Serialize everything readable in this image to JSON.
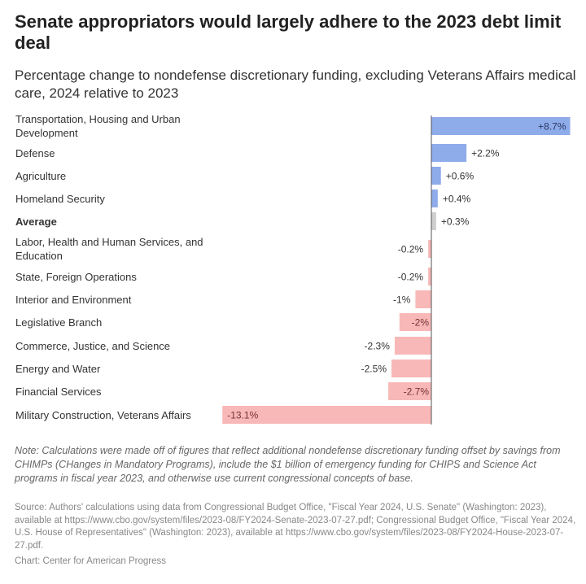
{
  "chart_data": {
    "type": "bar",
    "orientation": "horizontal",
    "title": "Senate appropriators would largely adhere to the 2023 debt limit deal",
    "subtitle": "Percentage change to nondefense discretionary funding, excluding Veterans Affairs medical care, 2024 relative to 2023",
    "categories": [
      "Transportation, Housing and Urban Development",
      "Defense",
      "Agriculture",
      "Homeland Security",
      "Average",
      "Labor, Health and Human Services, and Education",
      "State, Foreign Operations",
      "Interior and Environment",
      "Legislative Branch",
      "Commerce, Justice, and Science",
      "Energy and Water",
      "Financial Services",
      "Military Construction, Veterans Affairs"
    ],
    "values": [
      8.7,
      2.2,
      0.6,
      0.4,
      0.3,
      -0.2,
      -0.2,
      -1,
      -2,
      -2.3,
      -2.5,
      -2.7,
      -13.1
    ],
    "data_labels": [
      "+8.7%",
      "+2.2%",
      "+0.6%",
      "+0.4%",
      "+0.3%",
      "-0.2%",
      "-0.2%",
      "-1%",
      "-2%",
      "-2.3%",
      "-2.5%",
      "-2.7%",
      "-13.1%"
    ],
    "colors": {
      "positive": "#8eabea",
      "negative": "#f8b8b8",
      "average": "#cfcfcf"
    },
    "highlight_category": "Average",
    "xlim": [
      -13.1,
      8.7
    ],
    "grid": false,
    "legend": "none"
  },
  "footer": {
    "note": "Note: Calculations were made off of figures that reflect additional nondefense discretionary funding offset by savings from CHIMPs (CHanges in Mandatory Programs), include the $1 billion of emergency funding for CHIPS and Science Act programs in fiscal year 2023, and otherwise use current congressional concepts of base.",
    "source": "Source: Authors' calculations using data from Congressional Budget Office, \"Fiscal Year 2024, U.S. Senate\" (Washington: 2023), available at https://www.cbo.gov/system/files/2023-08/FY2024-Senate-2023-07-27.pdf; Congressional Budget Office, \"Fiscal Year 2024, U.S. House of Representatives\" (Washington: 2023), available at https://www.cbo.gov/system/files/2023-08/FY2024-House-2023-07-27.pdf.",
    "credit": "Chart: Center for American Progress"
  }
}
